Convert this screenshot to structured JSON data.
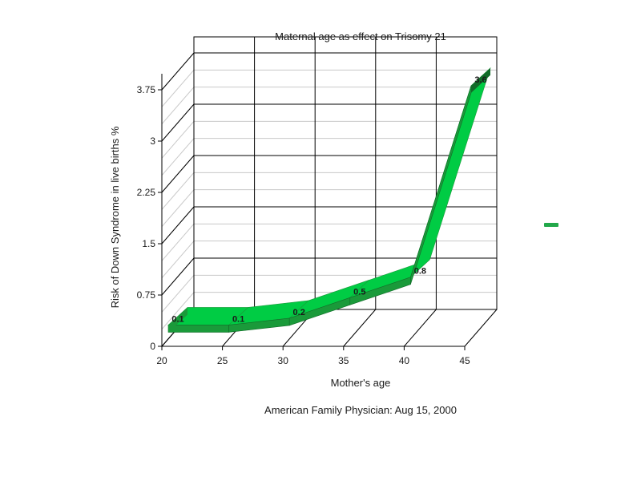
{
  "chart_data": {
    "type": "area",
    "title": "Maternal age as effect on Trisomy 21",
    "xlabel": "Mother's age",
    "ylabel": "Risk of Down Syndrome in live births %",
    "source": "American Family Physician: Aug 15, 2000",
    "x": [
      20,
      25,
      30,
      35,
      40,
      45
    ],
    "y": [
      0.1,
      0.1,
      0.2,
      0.5,
      0.8,
      3.6
    ],
    "data_labels": [
      "0.1",
      "0.1",
      "0.2",
      "0.5",
      "0.8",
      "3.6"
    ],
    "x_ticks": [
      "20",
      "25",
      "30",
      "35",
      "40",
      "45"
    ],
    "y_ticks": [
      "0",
      "0.75",
      "1.5",
      "2.25",
      "3",
      "3.75"
    ],
    "xlim": [
      20,
      45
    ],
    "ylim": [
      0,
      3.75
    ],
    "grid": true,
    "three_d": true,
    "legend": "right",
    "colors": {
      "ribbon_top": "#00cc44",
      "ribbon_side": "#1a9a3a",
      "ribbon_dark": "#116b28",
      "legend_swatch": "#22a84a"
    }
  }
}
